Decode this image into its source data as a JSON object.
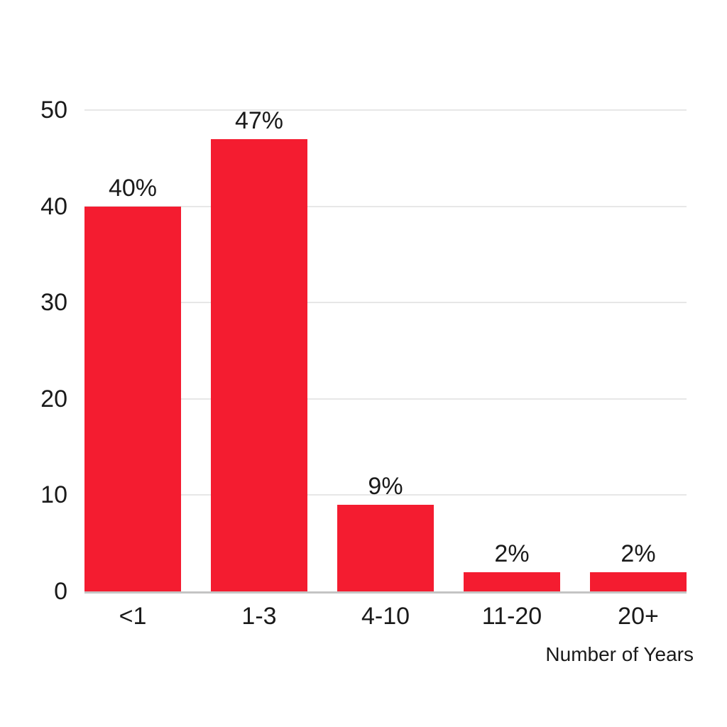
{
  "chart_data": {
    "type": "bar",
    "categories": [
      "<1",
      "1-3",
      "4-10",
      "11-20",
      "20+"
    ],
    "values": [
      40,
      47,
      9,
      2,
      2
    ],
    "data_labels": [
      "40%",
      "47%",
      "9%",
      "2%",
      "2%"
    ],
    "title": "",
    "xlabel": "Number of Years",
    "ylabel": "",
    "ylim": [
      0,
      50
    ],
    "yticks": [
      0,
      10,
      20,
      30,
      40,
      50
    ],
    "grid": true,
    "legend_position": "none",
    "colors": {
      "bar": "#F41C30",
      "gridline": "#E7E7E7",
      "baseline": "#C4C4C4",
      "text": "#1A1A1A",
      "background": "#FFFFFF"
    }
  }
}
